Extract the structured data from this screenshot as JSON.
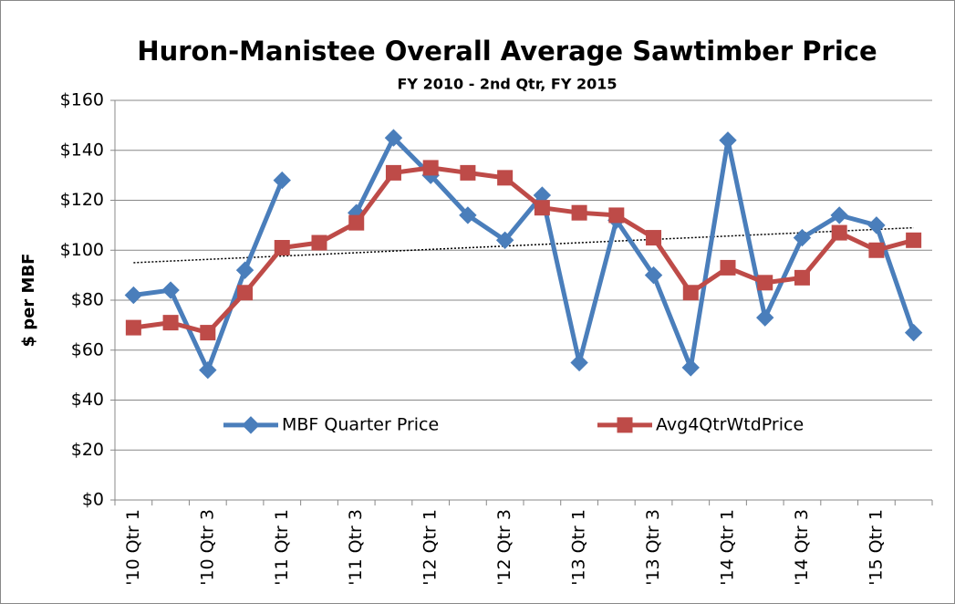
{
  "chart_data": {
    "type": "line",
    "title": "Huron-Manistee Overall Average Sawtimber Price",
    "subtitle": "FY 2010 - 2nd Qtr, FY 2015",
    "y_label": "$ per MBF",
    "categories": [
      "'10 Qtr 1",
      null,
      "'10 Qtr 3",
      null,
      "'11 Qtr 1",
      null,
      "'11 Qtr 3",
      null,
      "'12 Qtr 1",
      null,
      "'12 Qtr 3",
      null,
      "'13 Qtr 1",
      null,
      "'13 Qtr 3",
      null,
      "'14 Qtr 1",
      null,
      "'14 Qtr 3",
      null,
      "'15 Qtr 1",
      null
    ],
    "series": [
      {
        "name": "MBF Quarter Price",
        "color": "#4a7ebb",
        "marker": "diamond",
        "values": [
          82,
          84,
          52,
          92,
          128,
          null,
          115,
          145,
          130,
          114,
          104,
          122,
          55,
          112,
          90,
          53,
          144,
          73,
          105,
          114,
          110,
          67
        ]
      },
      {
        "name": "Avg4QtrWtdPrice",
        "color": "#be4b48",
        "marker": "square",
        "values": [
          69,
          71,
          67,
          83,
          101,
          103,
          111,
          131,
          133,
          131,
          129,
          117,
          115,
          114,
          105,
          83,
          93,
          87,
          89,
          107,
          100,
          104
        ]
      }
    ],
    "trendline": {
      "values": [
        95,
        109
      ],
      "color": "#000000"
    },
    "ylim": [
      0,
      160
    ],
    "yticks": [
      {
        "value": 0,
        "label": "$0"
      },
      {
        "value": 20,
        "label": "$20"
      },
      {
        "value": 40,
        "label": "$40"
      },
      {
        "value": 60,
        "label": "$60"
      },
      {
        "value": 80,
        "label": "$80"
      },
      {
        "value": 100,
        "label": "$100"
      },
      {
        "value": 120,
        "label": "$120"
      },
      {
        "value": 140,
        "label": "$140"
      },
      {
        "value": 160,
        "label": "$160"
      }
    ],
    "grid": true,
    "legend": "lower center"
  }
}
